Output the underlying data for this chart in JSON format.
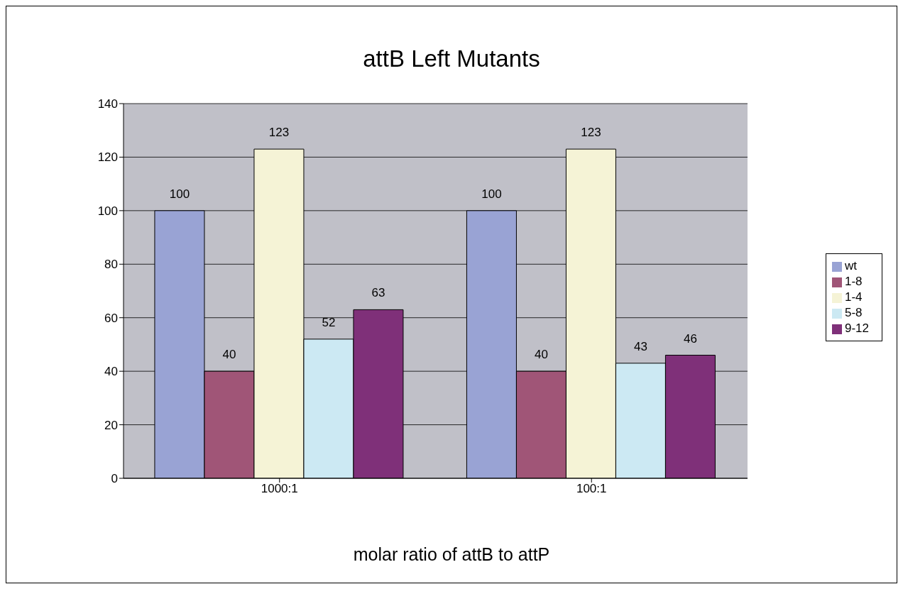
{
  "chart_data": {
    "type": "bar",
    "title": "attB Left Mutants",
    "xlabel": "molar ratio of attB to attP",
    "categories": [
      "1000:1",
      "100:1"
    ],
    "series": [
      {
        "name": "wt",
        "color": "#99a3d4",
        "values": [
          100,
          100
        ]
      },
      {
        "name": "1-8",
        "color": "#a05577",
        "values": [
          40,
          40
        ]
      },
      {
        "name": "1-4",
        "color": "#f5f3d6",
        "values": [
          123,
          123
        ]
      },
      {
        "name": "5-8",
        "color": "#cce9f3",
        "values": [
          52,
          43
        ]
      },
      {
        "name": "9-12",
        "color": "#7f3079",
        "values": [
          63,
          46
        ]
      }
    ],
    "ylim": [
      0,
      140
    ],
    "yticks": [
      0,
      20,
      40,
      60,
      80,
      100,
      120,
      140
    ],
    "grid": "y",
    "legend": "right",
    "data_labels": true
  }
}
